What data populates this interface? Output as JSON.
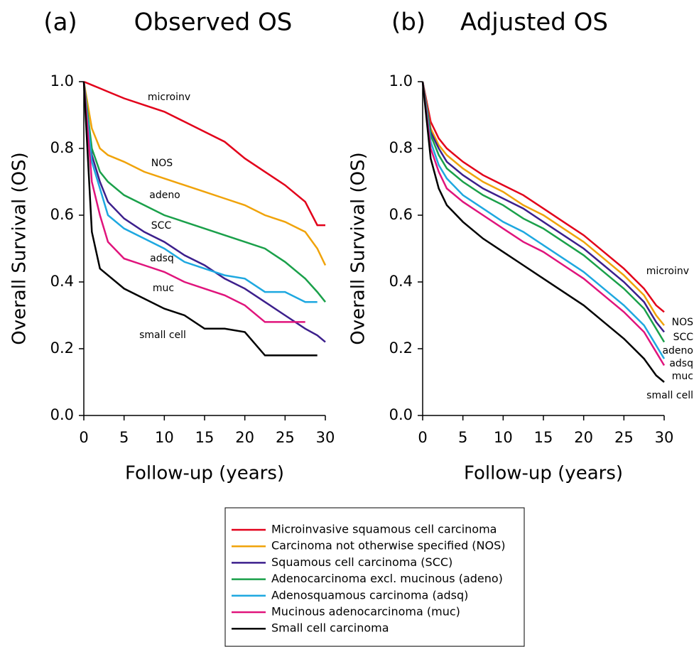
{
  "chart_data": [
    {
      "type": "line",
      "panel": "(a)",
      "title": "Observed OS",
      "xlabel": "Follow-up (years)",
      "ylabel": "Overall Survival (OS)",
      "x": [
        0,
        1,
        2,
        3,
        5,
        7.5,
        10,
        12.5,
        15,
        17.5,
        20,
        22.5,
        25,
        27.5,
        29,
        30
      ],
      "xlim": [
        0,
        30
      ],
      "xticks": [
        0,
        5,
        10,
        15,
        20,
        25,
        30
      ],
      "ylim": [
        0,
        1
      ],
      "yticks": [
        {
          "value": 0,
          "label": "0.0"
        },
        0.2,
        0.4,
        0.6,
        0.8,
        {
          "value": 1,
          "label": "1.0"
        }
      ],
      "series": [
        {
          "name": "microinv",
          "color": "#e2001a",
          "values": [
            1,
            0.99,
            0.98,
            0.97,
            0.95,
            0.93,
            0.91,
            0.88,
            0.85,
            0.82,
            0.77,
            0.73,
            0.69,
            0.64,
            0.57,
            0.57
          ]
        },
        {
          "name": "NOS",
          "color": "#f0a30a",
          "values": [
            1,
            0.86,
            0.8,
            0.78,
            0.76,
            0.73,
            0.71,
            0.69,
            0.67,
            0.65,
            0.63,
            0.6,
            0.58,
            0.55,
            0.5,
            0.45
          ]
        },
        {
          "name": "SCC",
          "color": "#3c1f8c",
          "values": [
            1,
            0.78,
            0.7,
            0.64,
            0.59,
            0.55,
            0.52,
            0.48,
            0.45,
            0.41,
            0.38,
            0.34,
            0.3,
            0.26,
            0.24,
            0.22
          ]
        },
        {
          "name": "adeno",
          "color": "#1aa04a",
          "values": [
            1,
            0.8,
            0.73,
            0.7,
            0.66,
            0.63,
            0.6,
            0.58,
            0.56,
            0.54,
            0.52,
            0.5,
            0.46,
            0.41,
            0.37,
            0.34
          ]
        },
        {
          "name": "adsq",
          "color": "#1ea8e0",
          "values": [
            1,
            0.76,
            0.68,
            0.6,
            0.56,
            0.53,
            0.5,
            0.46,
            0.44,
            0.42,
            0.41,
            0.37,
            0.37,
            0.34,
            0.34,
            null
          ]
        },
        {
          "name": "muc",
          "color": "#e0147c",
          "values": [
            1,
            0.7,
            0.6,
            0.52,
            0.47,
            0.45,
            0.43,
            0.4,
            0.38,
            0.36,
            0.33,
            0.28,
            0.28,
            0.28,
            null,
            null
          ]
        },
        {
          "name": "small cell",
          "color": "#000000",
          "values": [
            1,
            0.55,
            0.44,
            0.42,
            0.38,
            0.35,
            0.32,
            0.3,
            0.26,
            0.26,
            0.25,
            0.18,
            0.18,
            0.18,
            0.18,
            null
          ]
        }
      ]
    },
    {
      "type": "line",
      "panel": "(b)",
      "title": "Adjusted OS",
      "xlabel": "Follow-up (years)",
      "ylabel": "Overall Survival (OS)",
      "x": [
        0,
        1,
        2,
        3,
        5,
        7.5,
        10,
        12.5,
        15,
        17.5,
        20,
        22.5,
        25,
        27.5,
        29,
        30
      ],
      "xlim": [
        0,
        30
      ],
      "xticks": [
        0,
        5,
        10,
        15,
        20,
        25,
        30
      ],
      "ylim": [
        0,
        1
      ],
      "yticks": [
        {
          "value": 0,
          "label": "0.0"
        },
        0.2,
        0.4,
        0.6,
        0.8,
        {
          "value": 1,
          "label": "1.0"
        }
      ],
      "series": [
        {
          "name": "microinv",
          "color": "#e2001a",
          "values": [
            1,
            0.88,
            0.83,
            0.8,
            0.76,
            0.72,
            0.69,
            0.66,
            0.62,
            0.58,
            0.54,
            0.49,
            0.44,
            0.38,
            0.33,
            0.31
          ]
        },
        {
          "name": "NOS",
          "color": "#f0a30a",
          "values": [
            1,
            0.86,
            0.81,
            0.78,
            0.74,
            0.7,
            0.67,
            0.63,
            0.6,
            0.56,
            0.52,
            0.47,
            0.42,
            0.36,
            0.3,
            0.27
          ]
        },
        {
          "name": "SCC",
          "color": "#3c1f8c",
          "values": [
            1,
            0.85,
            0.8,
            0.76,
            0.72,
            0.68,
            0.65,
            0.62,
            0.58,
            0.54,
            0.5,
            0.45,
            0.4,
            0.34,
            0.28,
            0.25
          ]
        },
        {
          "name": "adeno",
          "color": "#1aa04a",
          "values": [
            1,
            0.84,
            0.78,
            0.74,
            0.7,
            0.66,
            0.63,
            0.59,
            0.56,
            0.52,
            0.48,
            0.43,
            0.38,
            0.32,
            0.26,
            0.22
          ]
        },
        {
          "name": "adsq",
          "color": "#1ea8e0",
          "values": [
            1,
            0.82,
            0.75,
            0.71,
            0.66,
            0.62,
            0.58,
            0.55,
            0.51,
            0.47,
            0.43,
            0.38,
            0.33,
            0.27,
            0.21,
            0.17
          ]
        },
        {
          "name": "muc",
          "color": "#e0147c",
          "values": [
            1,
            0.8,
            0.73,
            0.68,
            0.64,
            0.6,
            0.56,
            0.52,
            0.49,
            0.45,
            0.41,
            0.36,
            0.31,
            0.25,
            0.19,
            0.15
          ]
        },
        {
          "name": "small cell",
          "color": "#000000",
          "values": [
            1,
            0.77,
            0.68,
            0.63,
            0.58,
            0.53,
            0.49,
            0.45,
            0.41,
            0.37,
            0.33,
            0.28,
            0.23,
            0.17,
            0.12,
            0.1
          ]
        }
      ]
    }
  ],
  "legend": [
    "Microinvasive squamous cell carcinoma",
    "Carcinoma not otherwise specified (NOS)",
    "Squamous cell carcinoma (SCC)",
    "Adenocarcinoma excl. mucinous (adeno)",
    "Adenosquamous carcinoma (adsq)",
    "Mucinous adenocarcinoma (muc)",
    "Small cell carcinoma"
  ]
}
